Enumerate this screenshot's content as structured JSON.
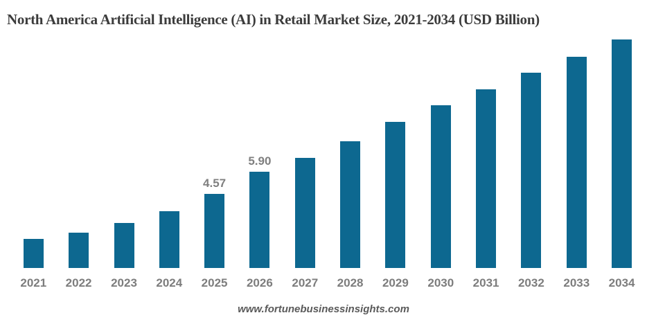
{
  "title": "North America Artificial Intelligence (AI) in Retail Market Size, 2021-2034 (USD Billion)",
  "footer": {
    "website": "www.fortunebusinessinsights.com"
  },
  "colors": {
    "bar": "#0d6890",
    "title": "#3c3c3c",
    "axis_label": "#7d7d7d",
    "data_label": "#7f7f7f",
    "footer": "#5a5a5a",
    "background": "#ffffff"
  },
  "chart_data": {
    "type": "bar",
    "title": "North America Artificial Intelligence (AI) in Retail Market Size, 2021-2034 (USD Billion)",
    "categories": [
      "2021",
      "2022",
      "2023",
      "2024",
      "2025",
      "2026",
      "2027",
      "2028",
      "2029",
      "2030",
      "2031",
      "2032",
      "2033",
      "2034"
    ],
    "values": [
      1.8,
      2.18,
      2.75,
      3.49,
      4.57,
      5.9,
      6.78,
      7.79,
      8.98,
      9.99,
      10.97,
      12.01,
      12.99,
      14.03
    ],
    "data_labels": [
      "",
      "",
      "",
      "",
      "4.57",
      "5.90",
      "",
      "",
      "",
      "",
      "",
      "",
      "",
      ""
    ],
    "xlabel": "",
    "ylabel": "",
    "unit": "USD Billion",
    "ylim": [
      0,
      14.5
    ],
    "grid": false,
    "legend": false,
    "bar_color": "#0d6890",
    "source_label": "www.fortunebusinessinsights.com"
  }
}
